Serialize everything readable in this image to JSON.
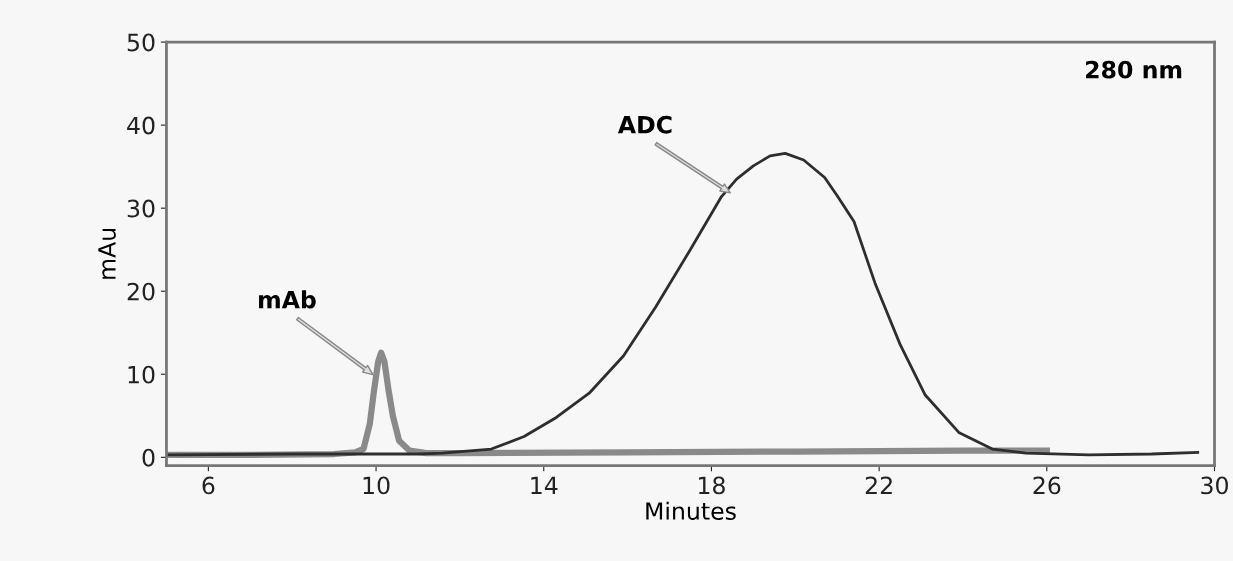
{
  "chart_data": {
    "type": "line",
    "xlabel": "Minutes",
    "ylabel": "mAu",
    "xlim": [
      5,
      30
    ],
    "xticks": [
      6,
      10,
      14,
      18,
      22,
      26,
      30
    ],
    "ylim": [
      -1,
      50
    ],
    "yticks": [
      0,
      10,
      20,
      30,
      40,
      50
    ],
    "grid": false,
    "legend": false,
    "marker": "none",
    "line_style": "solid",
    "series": [
      {
        "color": "#8a8a8a",
        "x": [
          5,
          7,
          9,
          9.5,
          9.7,
          9.85,
          9.95,
          10.05,
          10.12,
          10.2,
          10.3,
          10.4,
          10.55,
          10.8,
          11.2,
          12,
          16,
          20,
          24,
          26
        ],
        "values": [
          0.3,
          0.3,
          0.4,
          0.6,
          1,
          4,
          8,
          11.5,
          12.6,
          11.5,
          8,
          5,
          2,
          0.8,
          0.5,
          0.5,
          0.6,
          0.7,
          0.8,
          0.8
        ]
      },
      {
        "color": "#2e2e2e",
        "x": [
          5,
          8,
          10,
          11,
          11.58,
          12.75,
          13.53,
          14.3,
          15.1,
          15.9,
          16.67,
          17.46,
          18.24,
          18.6,
          19.0,
          19.4,
          19.76,
          20.2,
          20.7,
          21.0,
          21.4,
          21.9,
          22.5,
          23.1,
          23.9,
          24.7,
          25.5,
          27,
          28.5,
          29.6
        ],
        "values": [
          0.3,
          0.4,
          0.4,
          0.4,
          0.5,
          1.0,
          2.5,
          4.8,
          7.8,
          12.2,
          18.1,
          24.7,
          31.4,
          33.5,
          35.1,
          36.3,
          36.6,
          35.8,
          33.7,
          31.5,
          28.4,
          21,
          13.6,
          7.5,
          3.0,
          1.0,
          0.5,
          0.3,
          0.4,
          0.6
        ]
      }
    ],
    "annotations": [
      "mAb",
      "ADC",
      "280 nm"
    ]
  }
}
